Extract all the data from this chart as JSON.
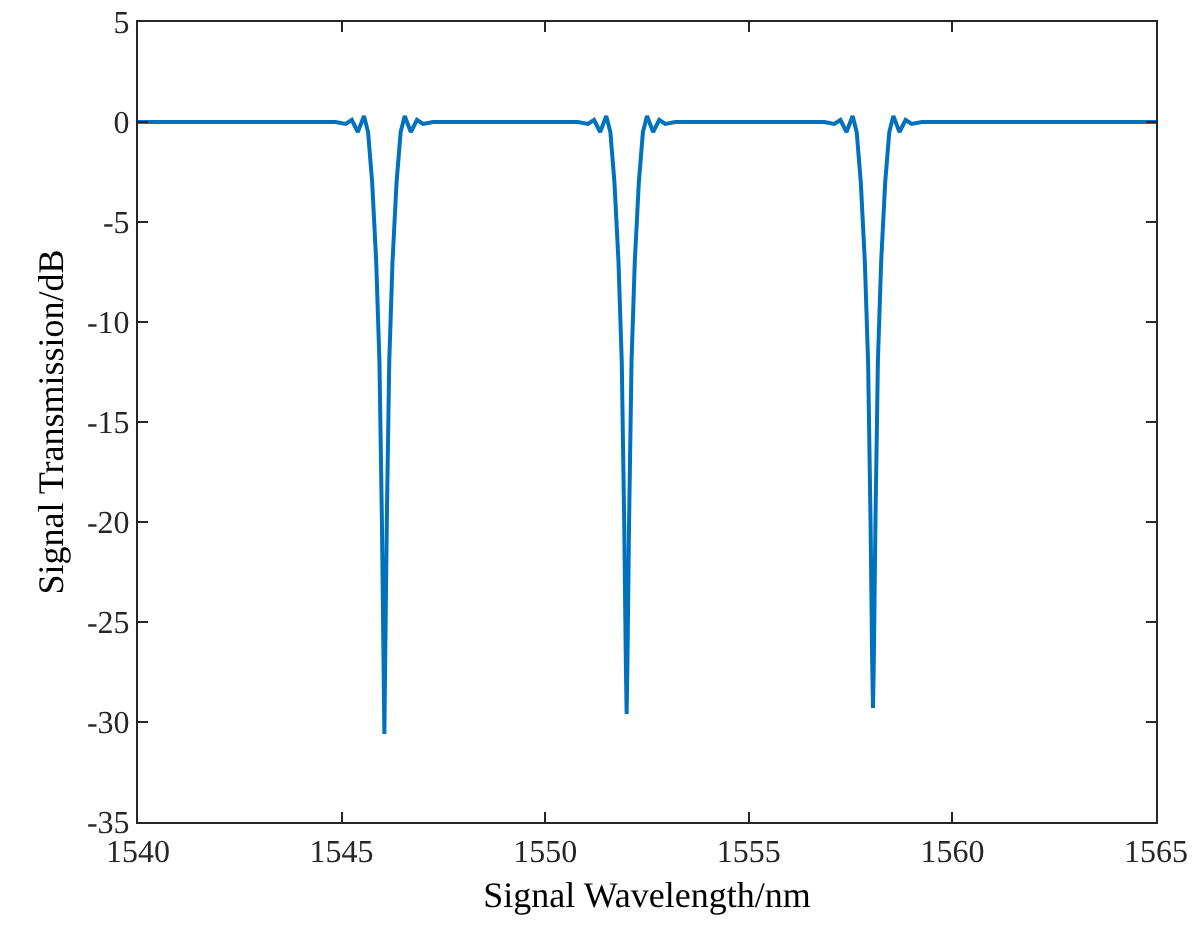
{
  "chart_data": {
    "type": "line",
    "xlabel": "Signal Wavelength/nm",
    "ylabel": "Signal Transmission/dB",
    "x": [
      1540,
      1542,
      1543.5,
      1544.85,
      1545.1,
      1545.25,
      1545.4,
      1545.55,
      1545.65,
      1545.75,
      1545.85,
      1545.93,
      1545.99,
      1546.03,
      1546.05,
      1546.07,
      1546.11,
      1546.17,
      1546.25,
      1546.35,
      1546.45,
      1546.55,
      1546.7,
      1546.85,
      1547.0,
      1547.25,
      1548.5,
      1550,
      1550.8,
      1551.05,
      1551.2,
      1551.35,
      1551.5,
      1551.6,
      1551.7,
      1551.8,
      1551.88,
      1551.94,
      1551.98,
      1552.0,
      1552.02,
      1552.06,
      1552.12,
      1552.2,
      1552.3,
      1552.4,
      1552.5,
      1552.65,
      1552.8,
      1552.95,
      1553.2,
      1555,
      1556,
      1556.85,
      1557.1,
      1557.25,
      1557.4,
      1557.55,
      1557.65,
      1557.75,
      1557.85,
      1557.93,
      1557.99,
      1558.03,
      1558.05,
      1558.07,
      1558.11,
      1558.17,
      1558.25,
      1558.35,
      1558.45,
      1558.55,
      1558.7,
      1558.85,
      1559.0,
      1559.25,
      1561,
      1563,
      1565
    ],
    "series": [
      {
        "color": "#0072bd",
        "values": [
          0,
          0,
          0,
          0,
          -0.1,
          0.1,
          -0.5,
          0.3,
          -0.5,
          -3,
          -7,
          -12,
          -20,
          -27,
          -30.6,
          -27,
          -20,
          -12,
          -7,
          -3,
          -0.5,
          0.3,
          -0.5,
          0.1,
          -0.1,
          0,
          0,
          0,
          0,
          -0.1,
          0.1,
          -0.5,
          0.3,
          -0.5,
          -3,
          -7,
          -12,
          -20,
          -27,
          -29.6,
          -27,
          -20,
          -12,
          -7,
          -3,
          -0.5,
          0.3,
          -0.5,
          0.1,
          -0.1,
          0,
          0,
          0,
          0,
          -0.1,
          0.1,
          -0.5,
          0.3,
          -0.5,
          -3,
          -7,
          -12,
          -20,
          -27,
          -29.3,
          -27,
          -20,
          -12,
          -7,
          -3,
          -0.5,
          0.3,
          -0.5,
          0.1,
          -0.1,
          0,
          0,
          0,
          0
        ]
      }
    ],
    "xlim": [
      1540,
      1565
    ],
    "xticks": [
      1540,
      1545,
      1550,
      1555,
      1560,
      1565
    ],
    "ylim": [
      -35,
      5
    ],
    "yticks": [
      -35,
      -30,
      -25,
      -20,
      -15,
      -10,
      -5,
      0,
      5
    ],
    "grid": false,
    "marker": "none",
    "line_style": "solid"
  }
}
